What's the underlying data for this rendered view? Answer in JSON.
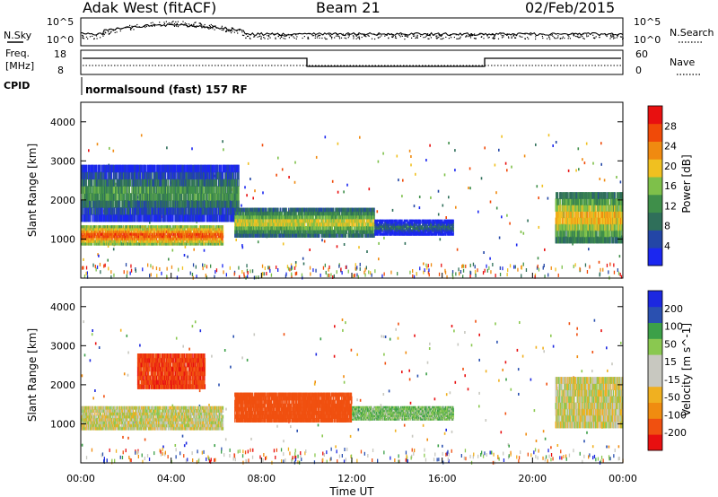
{
  "header": {
    "radar": "Adak West (fitACF)",
    "beam": "Beam 21",
    "date": "02/Feb/2015"
  },
  "top_panels": {
    "noise_left_label": "N.Sky",
    "noise_right_label": "N.Search",
    "noise_ticks": [
      "10^5",
      "10^0"
    ],
    "freq_label_line1": "Freq.",
    "freq_label_line2": "[MHz]",
    "freq_ticks": [
      "18",
      "8"
    ],
    "nave_label": "Nave",
    "nave_ticks": [
      "60",
      "0"
    ],
    "cpid_label": "CPID",
    "cpid_text": "normalsound (fast) 157 RF"
  },
  "colors": {
    "power_scale": [
      "#1b27f0",
      "#2346a6",
      "#2f6f5a",
      "#3f8f4a",
      "#7ec04a",
      "#f0c020",
      "#f08a10",
      "#f04a08",
      "#e81010"
    ],
    "velocity_scale": [
      "#e80f10",
      "#f05010",
      "#f08c10",
      "#f0b020",
      "#c8c8c0",
      "#c8c8c0",
      "#8ac850",
      "#3ca048",
      "#2a50b0",
      "#1c28e0"
    ]
  },
  "chart_data": [
    {
      "type": "heatmap",
      "name": "power",
      "xlabel": "",
      "ylabel": "Slant Range [km]",
      "ylim": [
        0,
        4500
      ],
      "yticks": [
        "1000",
        "2000",
        "3000",
        "4000"
      ],
      "colorbar_label": "Power [dB]",
      "colorbar_ticks": [
        "4",
        "8",
        "12",
        "16",
        "20",
        "24",
        "28"
      ],
      "colorbar_range": [
        0,
        32
      ],
      "features": [
        {
          "start_h": 0,
          "end_h": 6.3,
          "range_lo": 850,
          "range_hi": 1350,
          "value": 28
        },
        {
          "start_h": 0,
          "end_h": 7.0,
          "range_lo": 1450,
          "range_hi": 2900,
          "value": 14
        },
        {
          "start_h": 6.8,
          "end_h": 13.0,
          "range_lo": 1050,
          "range_hi": 1800,
          "value": 20
        },
        {
          "start_h": 13.0,
          "end_h": 16.5,
          "range_lo": 1100,
          "range_hi": 1500,
          "value": 10
        },
        {
          "start_h": 21.0,
          "end_h": 24.0,
          "range_lo": 900,
          "range_hi": 2200,
          "value": 22
        }
      ]
    },
    {
      "type": "heatmap",
      "name": "velocity",
      "xlabel": "Time UT",
      "ylabel": "Slant Range [km]",
      "ylim": [
        0,
        4500
      ],
      "yticks": [
        "1000",
        "2000",
        "3000",
        "4000"
      ],
      "xticks": [
        "00:00",
        "04:00",
        "08:00",
        "12:00",
        "16:00",
        "20:00",
        "00:00"
      ],
      "xlim": [
        0,
        24
      ],
      "colorbar_label": "Velocity [m s^-1]",
      "colorbar_ticks": [
        "200",
        "100",
        "50",
        "15",
        "-15",
        "-50",
        "-100",
        "-200"
      ],
      "features": [
        {
          "start_h": 0,
          "end_h": 6.3,
          "range_lo": 850,
          "range_hi": 1450,
          "value": 0
        },
        {
          "start_h": 2.5,
          "end_h": 5.5,
          "range_lo": 1900,
          "range_hi": 2800,
          "value": -180
        },
        {
          "start_h": 6.8,
          "end_h": 12.0,
          "range_lo": 1050,
          "range_hi": 1800,
          "value": -150
        },
        {
          "start_h": 12.0,
          "end_h": 16.5,
          "range_lo": 1100,
          "range_hi": 1450,
          "value": 40
        },
        {
          "start_h": 21.0,
          "end_h": 24.0,
          "range_lo": 900,
          "range_hi": 2200,
          "value": 0
        }
      ]
    }
  ]
}
